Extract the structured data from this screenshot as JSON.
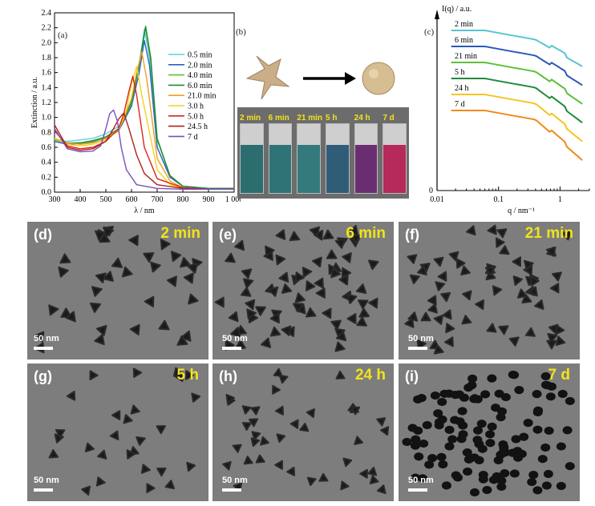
{
  "panel_a": {
    "label": "(a)",
    "chart_data": {
      "type": "line",
      "xlabel": "λ / nm",
      "ylabel": "Extinction / a.u.",
      "xlim": [
        300,
        1000
      ],
      "ylim": [
        0,
        2.4
      ],
      "xticks": [
        "300",
        "400",
        "500",
        "600",
        "700",
        "800",
        "900",
        "1 000"
      ],
      "yticks": [
        "0.0",
        "0.2",
        "0.4",
        "0.6",
        "0.8",
        "1.0",
        "1.2",
        "1.4",
        "1.6",
        "1.8",
        "2.0",
        "2.2",
        "2.4"
      ],
      "legend_position": "top-right",
      "series": [
        {
          "name": "0.5 min",
          "color": "#5fd0d8",
          "x": [
            300,
            350,
            400,
            450,
            500,
            550,
            600,
            630,
            650,
            670,
            700,
            750,
            800,
            900,
            1000
          ],
          "y": [
            0.7,
            0.68,
            0.7,
            0.72,
            0.78,
            0.88,
            1.2,
            1.7,
            2.18,
            1.8,
            0.6,
            0.2,
            0.08,
            0.05,
            0.05
          ]
        },
        {
          "name": "2.0 min",
          "color": "#2d5fc4",
          "x": [
            300,
            350,
            400,
            450,
            500,
            550,
            600,
            630,
            650,
            670,
            700,
            750,
            800,
            900,
            1000
          ],
          "y": [
            0.68,
            0.64,
            0.65,
            0.67,
            0.72,
            0.82,
            1.15,
            1.6,
            2.03,
            1.7,
            0.6,
            0.2,
            0.08,
            0.05,
            0.05
          ]
        },
        {
          "name": "4.0 min",
          "color": "#5cbf3a",
          "x": [
            300,
            350,
            400,
            450,
            500,
            550,
            600,
            630,
            655,
            675,
            700,
            750,
            800,
            900,
            1000
          ],
          "y": [
            0.7,
            0.65,
            0.65,
            0.68,
            0.73,
            0.84,
            1.18,
            1.7,
            2.2,
            1.75,
            0.7,
            0.22,
            0.08,
            0.05,
            0.05
          ]
        },
        {
          "name": "6.0 min",
          "color": "#1f8a3a",
          "x": [
            300,
            350,
            400,
            450,
            500,
            550,
            600,
            630,
            655,
            675,
            700,
            750,
            800,
            900,
            1000
          ],
          "y": [
            0.72,
            0.66,
            0.66,
            0.69,
            0.74,
            0.85,
            1.2,
            1.72,
            2.22,
            1.8,
            0.72,
            0.22,
            0.08,
            0.05,
            0.05
          ]
        },
        {
          "name": "21.0 min",
          "color": "#f0a020",
          "x": [
            300,
            350,
            400,
            450,
            500,
            550,
            600,
            620,
            640,
            660,
            700,
            750,
            800,
            900,
            1000
          ],
          "y": [
            0.72,
            0.66,
            0.64,
            0.66,
            0.72,
            0.82,
            1.25,
            1.6,
            1.88,
            1.5,
            0.45,
            0.15,
            0.06,
            0.04,
            0.04
          ]
        },
        {
          "name": "3.0 h",
          "color": "#f5d21e",
          "x": [
            300,
            350,
            400,
            450,
            500,
            550,
            580,
            600,
            620,
            640,
            700,
            750,
            800,
            900,
            1000
          ],
          "y": [
            0.72,
            0.64,
            0.62,
            0.64,
            0.7,
            0.85,
            1.1,
            1.45,
            1.68,
            1.3,
            0.3,
            0.1,
            0.05,
            0.04,
            0.04
          ]
        },
        {
          "name": "5.0 h",
          "color": "#d8261a",
          "x": [
            300,
            350,
            400,
            450,
            500,
            550,
            570,
            590,
            605,
            620,
            650,
            700,
            800,
            900,
            1000
          ],
          "y": [
            0.82,
            0.62,
            0.58,
            0.6,
            0.68,
            0.85,
            1.05,
            1.35,
            1.55,
            1.3,
            0.6,
            0.18,
            0.06,
            0.04,
            0.04
          ]
        },
        {
          "name": "24.5 h",
          "color": "#b0201a",
          "x": [
            300,
            350,
            400,
            450,
            500,
            530,
            550,
            570,
            590,
            620,
            650,
            700,
            800,
            900,
            1000
          ],
          "y": [
            0.9,
            0.6,
            0.56,
            0.58,
            0.68,
            0.85,
            0.98,
            1.06,
            0.85,
            0.5,
            0.25,
            0.1,
            0.05,
            0.04,
            0.04
          ]
        },
        {
          "name": "7 d",
          "color": "#7b4fbd",
          "x": [
            300,
            350,
            400,
            450,
            480,
            500,
            515,
            530,
            545,
            560,
            580,
            620,
            700,
            800,
            1000
          ],
          "y": [
            0.85,
            0.58,
            0.54,
            0.55,
            0.62,
            0.85,
            1.05,
            1.1,
            0.95,
            0.6,
            0.3,
            0.1,
            0.05,
            0.04,
            0.04
          ]
        }
      ]
    }
  },
  "panel_b": {
    "label": "(b)",
    "vial_labels": [
      "2 min",
      "6 min",
      "21 min",
      "5 h",
      "24 h",
      "7 d"
    ],
    "vial_colors": [
      "#2c6e70",
      "#2f7376",
      "#347a7c",
      "#2f5d78",
      "#6b2d72",
      "#b52a5a"
    ]
  },
  "panel_c": {
    "label": "(c)",
    "chart_data": {
      "type": "line",
      "xlabel": "q / nm⁻¹",
      "ylabel": "I(q) / a.u.",
      "xscale": "log",
      "xlim": [
        0.01,
        3
      ],
      "xticks": [
        "0.01",
        "0.1",
        "1"
      ],
      "y_origin_label": "0",
      "series": [
        {
          "name": "2 min",
          "color": "#56c5d0"
        },
        {
          "name": "6 min",
          "color": "#2a58b8"
        },
        {
          "name": "21 min",
          "color": "#5cbf3a"
        },
        {
          "name": "5 h",
          "color": "#1f8a3a"
        },
        {
          "name": "24 h",
          "color": "#f5c51e"
        },
        {
          "name": "7 d",
          "color": "#f08a1a"
        }
      ]
    }
  },
  "tem_panels": [
    {
      "label": "(d)",
      "time": "2 min",
      "scale": "50 nm"
    },
    {
      "label": "(e)",
      "time": "6 min",
      "scale": "50 nm"
    },
    {
      "label": "(f)",
      "time": "21 min",
      "scale": "50 nm"
    },
    {
      "label": "(g)",
      "time": "5 h",
      "scale": "50 nm"
    },
    {
      "label": "(h)",
      "time": "24 h",
      "scale": "50 nm"
    },
    {
      "label": "(i)",
      "time": "7 d",
      "scale": "50 nm"
    }
  ]
}
